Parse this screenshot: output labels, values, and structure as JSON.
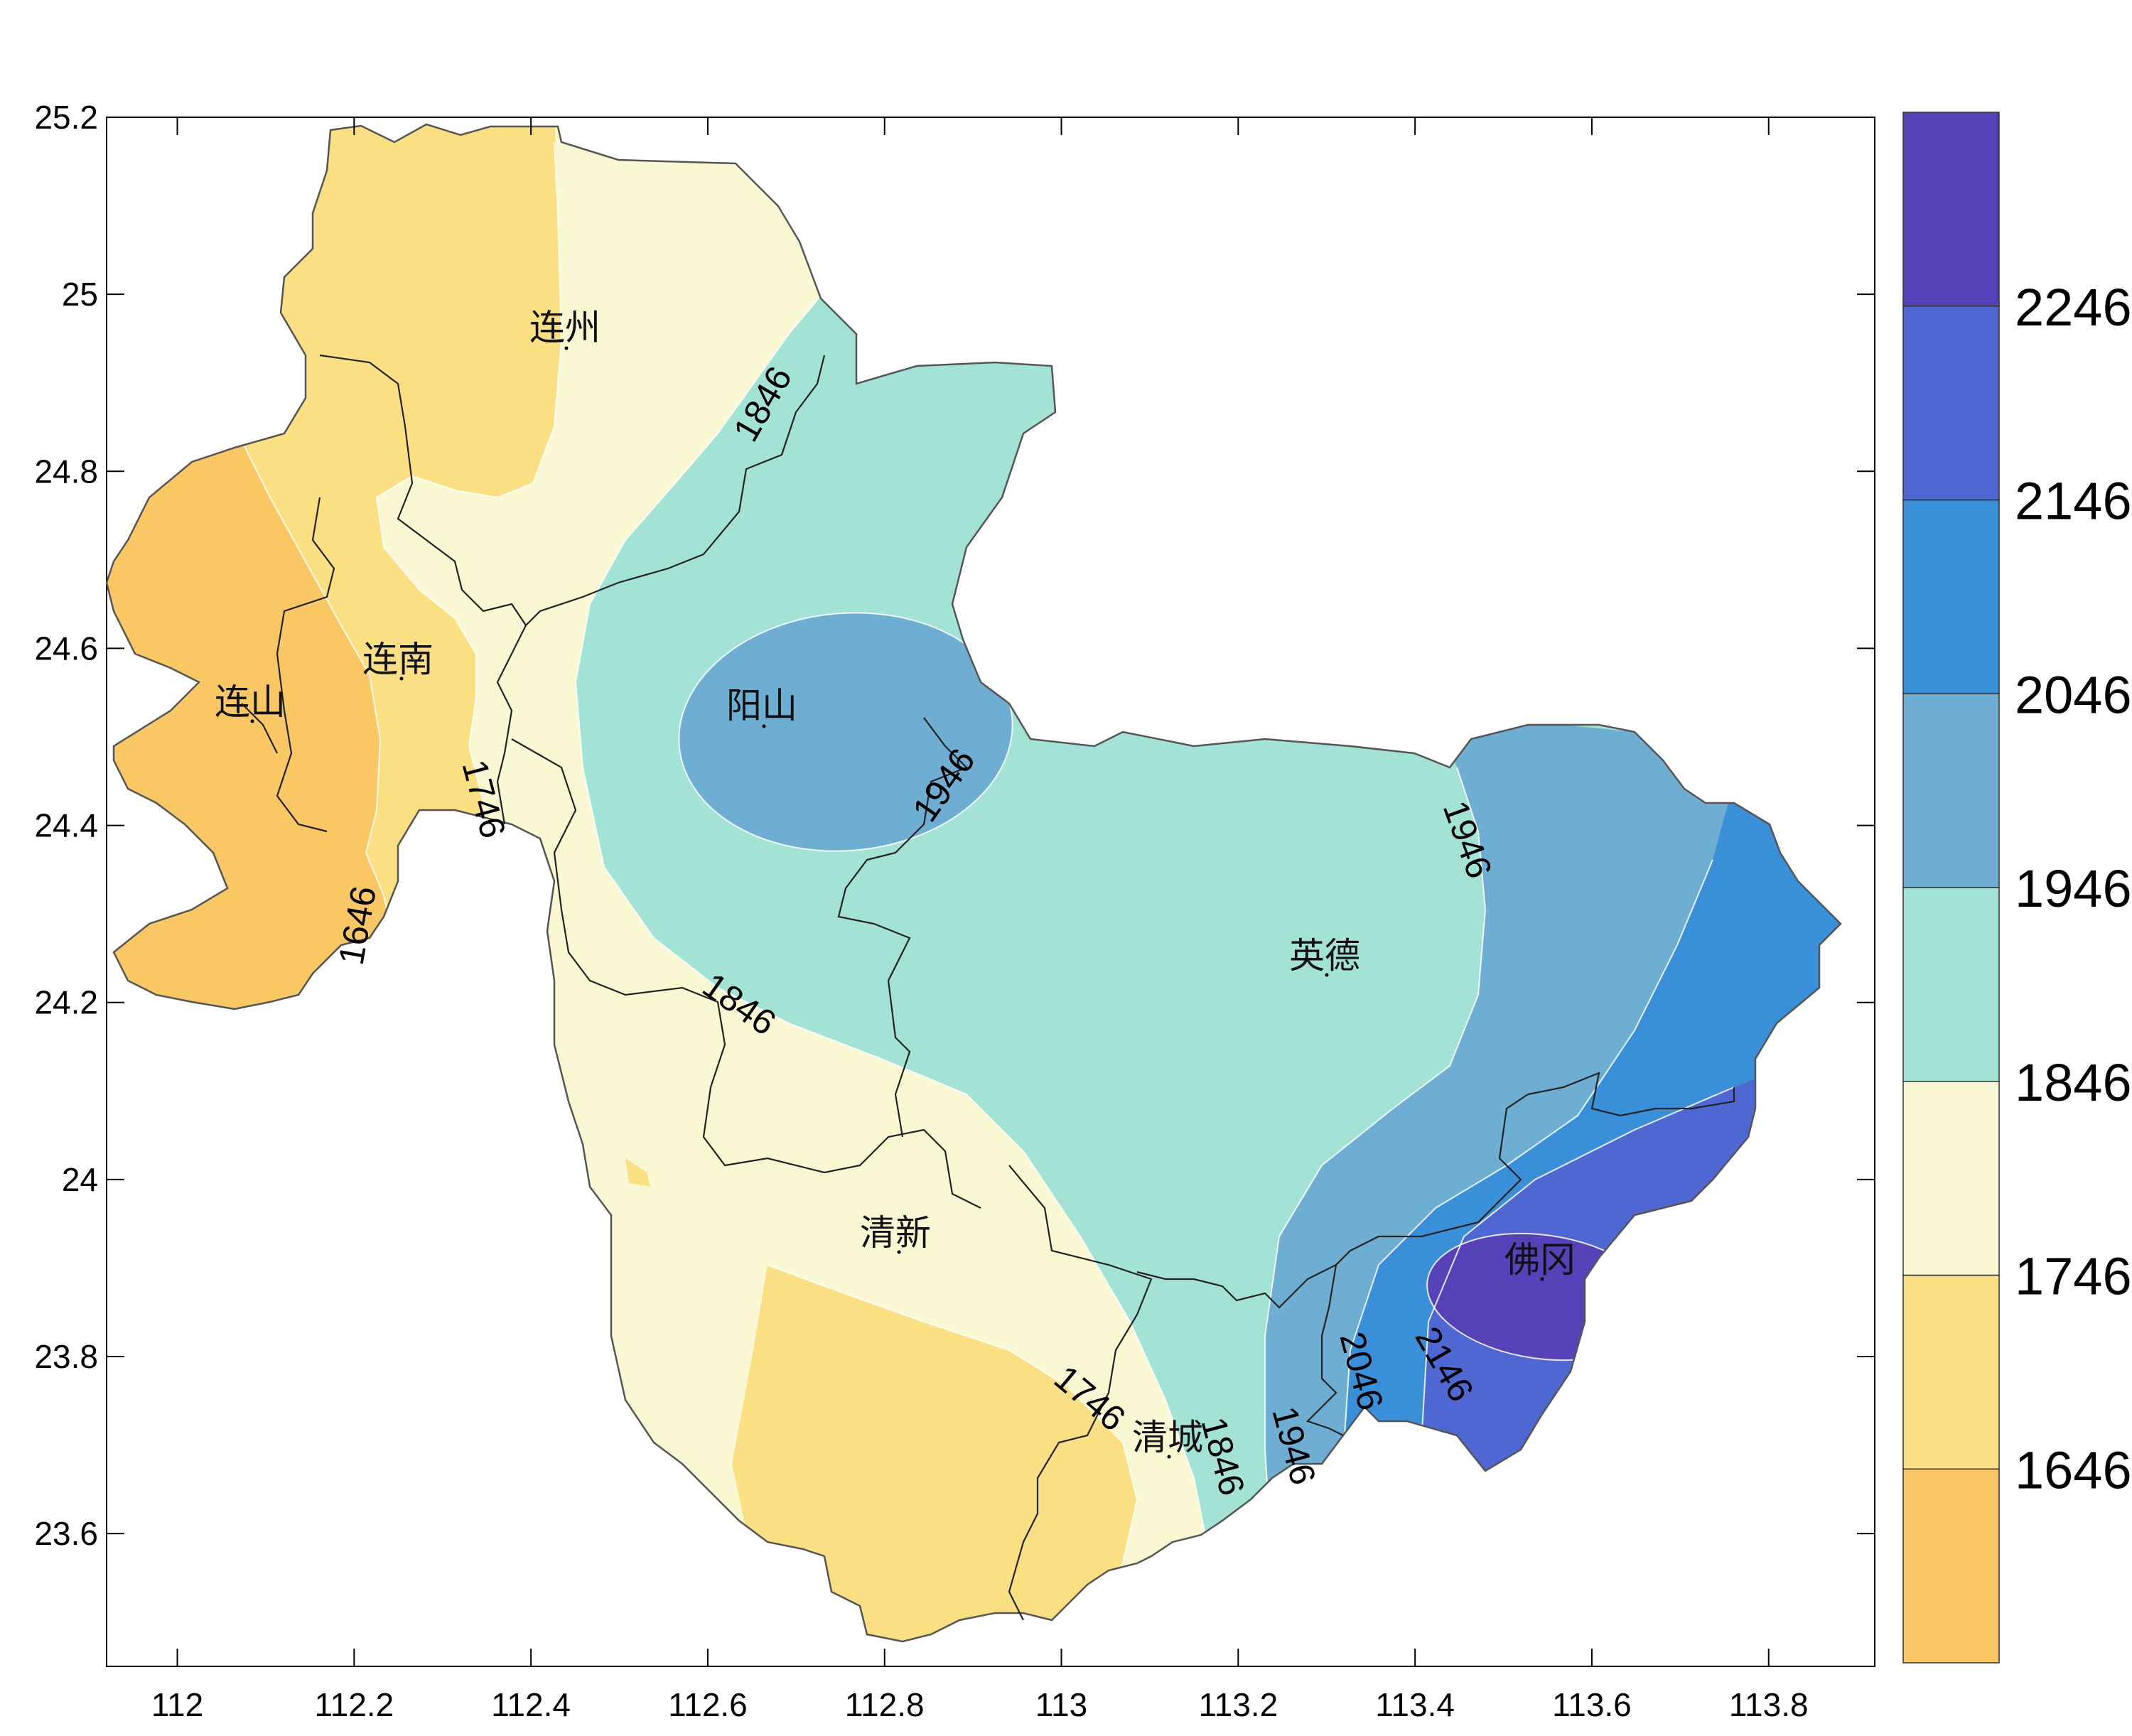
{
  "colors": {
    "c1546": "#f9c764",
    "c1646": "#fbe083",
    "c1746": "#f9f8d3",
    "c1846": "#a2e3d6",
    "c1946": "#6eaed3",
    "c2046": "#3a8fd9",
    "c2146": "#4e67d3",
    "c2246": "#5541b8"
  },
  "axes": {
    "x_ticks": [
      "112",
      "112.2",
      "112.4",
      "112.6",
      "112.8",
      "113",
      "113.2",
      "113.4",
      "113.6",
      "113.8"
    ],
    "y_ticks": [
      "25.2",
      "25",
      "24.8",
      "24.6",
      "24.4",
      "24.2",
      "24",
      "23.8",
      "23.6"
    ],
    "x_range": [
      111.92,
      113.92
    ],
    "y_range": [
      23.45,
      25.2
    ]
  },
  "colorbar": {
    "labels": [
      "1646",
      "1746",
      "1846",
      "1946",
      "2046",
      "2146",
      "2246"
    ]
  },
  "cities": [
    {
      "name": "连州",
      "lon": 112.39,
      "lat": 24.78
    },
    {
      "name": "连南",
      "lon": 112.3,
      "lat": 24.72
    },
    {
      "name": "连山",
      "lon": 112.09,
      "lat": 24.57
    },
    {
      "name": "阳山",
      "lon": 112.63,
      "lat": 24.47
    },
    {
      "name": "英德",
      "lon": 113.4,
      "lat": 24.18
    },
    {
      "name": "清新",
      "lon": 112.98,
      "lat": 23.73
    },
    {
      "name": "清城",
      "lon": 113.02,
      "lat": 23.7
    },
    {
      "name": "佛冈",
      "lon": 113.53,
      "lat": 23.87
    }
  ],
  "contour_labels": [
    "1846",
    "1746",
    "1646",
    "1946",
    "1846",
    "1946",
    "1746",
    "1846",
    "1946",
    "2046",
    "2146"
  ]
}
